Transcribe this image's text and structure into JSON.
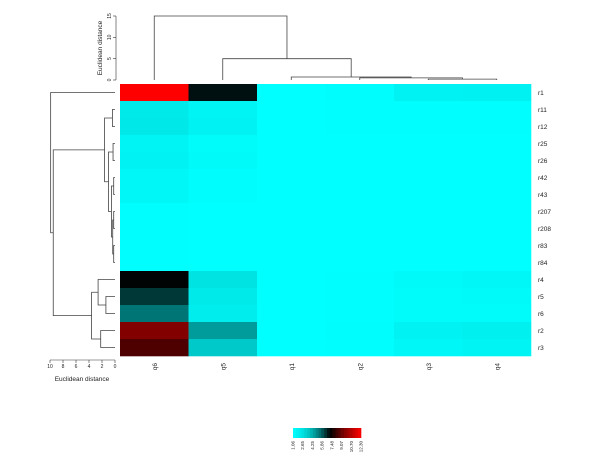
{
  "chart_data": {
    "type": "heatmap",
    "rows": [
      "r1",
      "r11",
      "r12",
      "r25",
      "r26",
      "r42",
      "r43",
      "r207",
      "r208",
      "r83",
      "r84",
      "r4",
      "r5",
      "r6",
      "r2",
      "r3"
    ],
    "columns": [
      "q6",
      "q5",
      "q1",
      "q2",
      "q3",
      "q4"
    ],
    "values": [
      [
        12.3,
        7.0,
        1.06,
        1.2,
        1.8,
        1.9
      ],
      [
        2.3,
        1.7,
        1.06,
        1.1,
        1.1,
        1.1
      ],
      [
        2.4,
        1.8,
        1.06,
        1.1,
        1.1,
        1.1
      ],
      [
        1.7,
        1.3,
        1.06,
        1.06,
        1.06,
        1.06
      ],
      [
        1.8,
        1.4,
        1.06,
        1.06,
        1.06,
        1.06
      ],
      [
        1.5,
        1.2,
        1.06,
        1.06,
        1.06,
        1.06
      ],
      [
        1.5,
        1.2,
        1.06,
        1.06,
        1.06,
        1.06
      ],
      [
        1.1,
        1.06,
        1.06,
        1.06,
        1.06,
        1.06
      ],
      [
        1.1,
        1.06,
        1.06,
        1.06,
        1.06,
        1.06
      ],
      [
        1.1,
        1.06,
        1.06,
        1.06,
        1.06,
        1.06
      ],
      [
        1.1,
        1.06,
        1.06,
        1.06,
        1.06,
        1.06
      ],
      [
        7.2,
        2.6,
        1.06,
        1.1,
        1.4,
        1.5
      ],
      [
        6.4,
        2.3,
        1.06,
        1.1,
        1.3,
        1.4
      ],
      [
        5.4,
        2.1,
        1.06,
        1.1,
        1.3,
        1.3
      ],
      [
        9.6,
        4.6,
        1.06,
        1.2,
        1.8,
        2.0
      ],
      [
        8.6,
        3.5,
        1.06,
        1.1,
        1.5,
        1.7
      ]
    ],
    "col_axis_label": "Euclidean distance",
    "col_axis_ticks": [
      0,
      5,
      10,
      15
    ],
    "row_axis_label": "Euclidean distance",
    "row_axis_ticks": [
      10,
      8,
      6,
      4,
      2,
      0
    ],
    "color_key": {
      "breaks": [
        "1.06",
        "2.65",
        "4.25",
        "5.86",
        "7.48",
        "9.07",
        "10.70",
        "12.30"
      ],
      "colors": [
        "#00ffff",
        "#00c8c8",
        "#008c8c",
        "#004646",
        "#000000",
        "#4d0000",
        "#a00000",
        "#ff0000"
      ]
    },
    "colors": {
      "low": "#00ffff",
      "mid": "#000000",
      "high": "#ff0000"
    }
  }
}
